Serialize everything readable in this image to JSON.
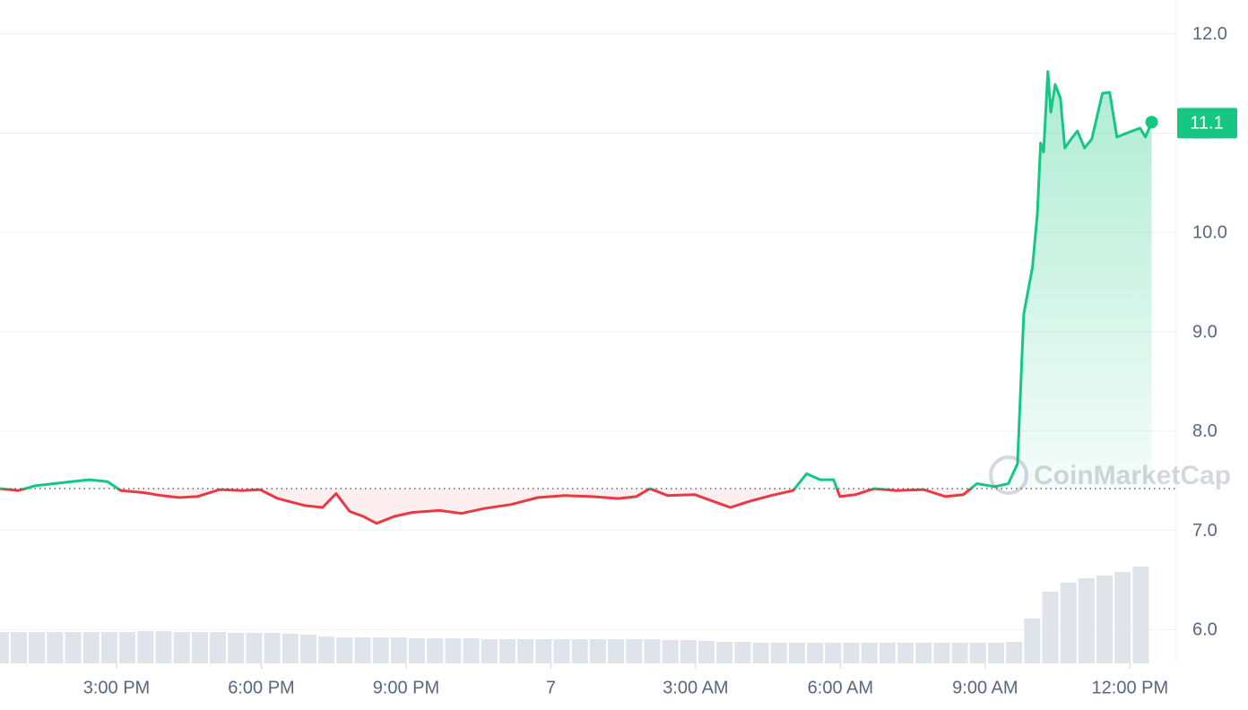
{
  "chart_data": {
    "type": "line",
    "x": [
      12.59,
      12.96,
      13.33,
      13.7,
      14.07,
      14.44,
      14.81,
      15.09,
      15.56,
      15.93,
      16.3,
      16.67,
      17.14,
      17.6,
      17.97,
      18.34,
      18.9,
      19.27,
      19.55,
      19.83,
      20.11,
      20.39,
      20.76,
      21.13,
      21.69,
      22.15,
      22.62,
      23.17,
      23.73,
      24.29,
      24.85,
      25.4,
      25.77,
      26.05,
      26.42,
      26.98,
      27.26,
      27.72,
      28.1,
      28.56,
      29.02,
      29.3,
      29.58,
      29.86,
      29.99,
      30.32,
      30.7,
      31.16,
      31.72,
      32.18,
      32.55,
      32.83,
      33.2,
      33.48,
      33.67,
      33.8,
      33.98,
      34.08,
      34.15,
      34.21,
      34.3,
      34.36,
      34.45,
      34.56,
      34.65,
      34.78,
      34.91,
      35.06,
      35.21,
      35.43,
      35.58,
      35.73,
      35.99,
      36.21,
      36.32,
      36.45
    ],
    "values": [
      7.42,
      7.4,
      7.45,
      7.47,
      7.49,
      7.51,
      7.49,
      7.4,
      7.38,
      7.35,
      7.33,
      7.34,
      7.41,
      7.4,
      7.41,
      7.32,
      7.25,
      7.23,
      7.37,
      7.19,
      7.14,
      7.07,
      7.14,
      7.18,
      7.2,
      7.17,
      7.22,
      7.26,
      7.33,
      7.35,
      7.34,
      7.32,
      7.34,
      7.42,
      7.35,
      7.36,
      7.31,
      7.23,
      7.29,
      7.35,
      7.4,
      7.57,
      7.51,
      7.51,
      7.34,
      7.36,
      7.42,
      7.4,
      7.41,
      7.34,
      7.36,
      7.47,
      7.44,
      7.47,
      7.67,
      9.18,
      9.65,
      10.18,
      10.9,
      10.81,
      11.62,
      11.21,
      11.49,
      11.35,
      10.85,
      10.94,
      11.02,
      10.85,
      10.94,
      11.4,
      11.41,
      10.96,
      11.01,
      11.05,
      10.96,
      11.11
    ],
    "up_color": "#16c784",
    "down_color": "#ea3943",
    "baseline": 7.42,
    "last_price": 11.1,
    "volume": {
      "x": [
        12.6,
        12.975,
        13.35,
        13.725,
        14.1,
        14.475,
        14.85,
        15.225,
        15.6,
        15.975,
        16.35,
        16.725,
        17.1,
        17.475,
        17.85,
        18.225,
        18.6,
        18.975,
        19.35,
        19.725,
        20.1,
        20.475,
        20.85,
        21.225,
        21.6,
        21.975,
        22.35,
        22.725,
        23.1,
        23.475,
        23.85,
        24.225,
        24.6,
        24.975,
        25.35,
        25.725,
        26.1,
        26.475,
        26.85,
        27.225,
        27.6,
        27.975,
        28.35,
        28.725,
        29.1,
        29.475,
        29.85,
        30.225,
        30.6,
        30.975,
        31.35,
        31.725,
        32.1,
        32.475,
        32.85,
        33.225,
        33.6,
        33.975,
        34.35,
        34.725,
        35.1,
        35.475,
        35.85,
        36.225
      ],
      "values": [
        35,
        35,
        35,
        35,
        35,
        35,
        35,
        35,
        36,
        36,
        35,
        35,
        35,
        34,
        34,
        34,
        33,
        32,
        30,
        29,
        29,
        29,
        29,
        28,
        28,
        28,
        28,
        27,
        27,
        27,
        27,
        27,
        27,
        27,
        27,
        27,
        27,
        26,
        26,
        25,
        24,
        24,
        23,
        23,
        23,
        23,
        23,
        23,
        23,
        23,
        23,
        23,
        23,
        23,
        23,
        23,
        24,
        50,
        80,
        90,
        95,
        98,
        102,
        108
      ],
      "color": "#dfe3ea"
    },
    "volume_lim": [
      0,
      120
    ],
    "xlim": [
      12.585,
      36.96
    ],
    "ylim": [
      5.66,
      12.34
    ],
    "xticks": [
      {
        "value": 15,
        "label": "3:00 PM"
      },
      {
        "value": 18,
        "label": "6:00 PM"
      },
      {
        "value": 21,
        "label": "9:00 PM"
      },
      {
        "value": 24,
        "label": "7"
      },
      {
        "value": 27,
        "label": "3:00 AM"
      },
      {
        "value": 30,
        "label": "6:00 AM"
      },
      {
        "value": 33,
        "label": "9:00 AM"
      },
      {
        "value": 36,
        "label": "12:00 PM"
      }
    ],
    "yticks": [
      {
        "value": 6,
        "label": "6.0"
      },
      {
        "value": 7,
        "label": "7.0"
      },
      {
        "value": 8,
        "label": "8.0"
      },
      {
        "value": 9,
        "label": "9.0"
      },
      {
        "value": 10,
        "label": "10.0"
      },
      {
        "value": 11,
        "label": "11.0"
      },
      {
        "value": 12,
        "label": "12.0"
      }
    ],
    "grid": true,
    "watermark": "CoinMarketCap"
  }
}
